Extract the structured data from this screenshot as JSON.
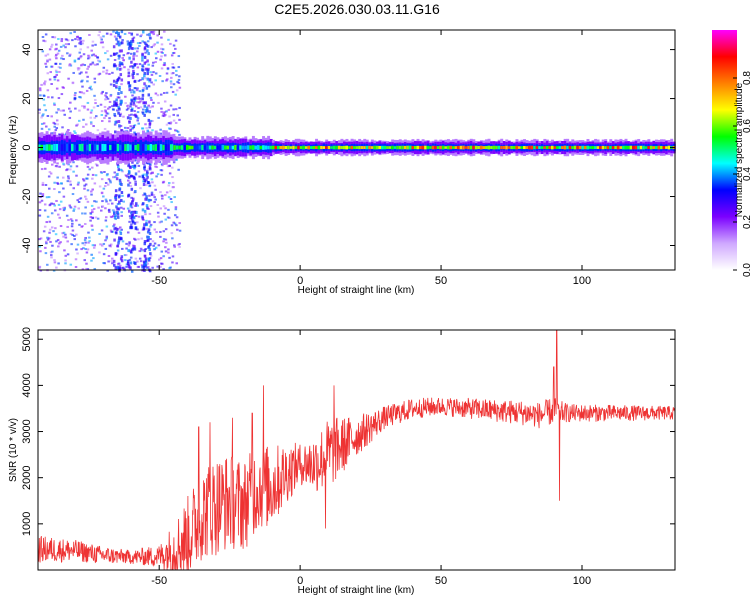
{
  "figure_title": "C2E5.2026.030.03.11.G16",
  "chart_data": [
    {
      "type": "heatmap",
      "name": "spectrogram",
      "xlabel": "Height of straight line (km)",
      "ylabel": "Frequency (Hz)",
      "xlim": [
        -93,
        133
      ],
      "ylim": [
        -50,
        48
      ],
      "xticks": [
        -50,
        0,
        50,
        100
      ],
      "yticks": [
        -40,
        -20,
        0,
        20,
        40
      ],
      "colorbar": {
        "label": "Normalized spectral amplitude",
        "range": [
          0.0,
          1.0
        ],
        "ticks": [
          0.0,
          0.2,
          0.4,
          0.6,
          0.8
        ],
        "colors": [
          "#ffffff",
          "#cfa8ff",
          "#7b00ff",
          "#0000ff",
          "#00ffff",
          "#00ff00",
          "#ffff00",
          "#ff8000",
          "#ff0000",
          "#ff00ff"
        ]
      },
      "main_band": {
        "frequency_hz": 0,
        "segments": [
          {
            "x_from": -93,
            "x_to": -45,
            "half_width_hz": 6,
            "peak_amplitude": 0.5
          },
          {
            "x_from": -45,
            "x_to": -10,
            "half_width_hz": 4,
            "peak_amplitude": 0.55
          },
          {
            "x_from": -10,
            "x_to": 133,
            "half_width_hz": 3,
            "peak_amplitude": 0.8
          }
        ]
      },
      "scatter_region": {
        "x_from": -93,
        "x_to": -43,
        "amplitude": 0.3
      }
    },
    {
      "type": "line",
      "name": "snr",
      "xlabel": "Height of straight line (km)",
      "ylabel": "SNR (10 * v/v)",
      "xlim": [
        -93,
        133
      ],
      "ylim": [
        0,
        5200
      ],
      "xticks": [
        -50,
        0,
        50,
        100
      ],
      "yticks": [
        1000,
        2000,
        3000,
        4000,
        5000
      ],
      "color": "#ee3333",
      "trend": {
        "x": [
          -93,
          -80,
          -70,
          -60,
          -50,
          -45,
          -40,
          -35,
          -30,
          -25,
          -20,
          -15,
          -10,
          -5,
          0,
          5,
          10,
          15,
          20,
          25,
          30,
          40,
          50,
          60,
          70,
          80,
          85,
          90,
          95,
          100,
          110,
          120,
          133
        ],
        "y": [
          450,
          420,
          320,
          280,
          300,
          450,
          700,
          1200,
          1400,
          1500,
          1400,
          1800,
          1800,
          2100,
          2300,
          2300,
          2500,
          2700,
          2900,
          3100,
          3300,
          3500,
          3550,
          3500,
          3450,
          3400,
          3350,
          3450,
          3400,
          3400,
          3400,
          3400,
          3400
        ]
      },
      "noise": {
        "x": [
          -93,
          -60,
          -50,
          -40,
          -30,
          -20,
          -10,
          0,
          10,
          20,
          30,
          50,
          90,
          95,
          133
        ],
        "amplitude": [
          300,
          150,
          250,
          900,
          1100,
          1000,
          900,
          450,
          800,
          450,
          250,
          200,
          300,
          200,
          150
        ]
      },
      "spikes": [
        {
          "x": -36,
          "y": 3100
        },
        {
          "x": -32,
          "y": 3200
        },
        {
          "x": -24,
          "y": 3300
        },
        {
          "x": -17,
          "y": 3400
        },
        {
          "x": -13,
          "y": 4000
        },
        {
          "x": 12,
          "y": 4000
        },
        {
          "x": 9,
          "y": 900
        },
        {
          "x": 90,
          "y": 4400
        },
        {
          "x": 91,
          "y": 5200
        },
        {
          "x": 92,
          "y": 1500
        }
      ]
    }
  ]
}
